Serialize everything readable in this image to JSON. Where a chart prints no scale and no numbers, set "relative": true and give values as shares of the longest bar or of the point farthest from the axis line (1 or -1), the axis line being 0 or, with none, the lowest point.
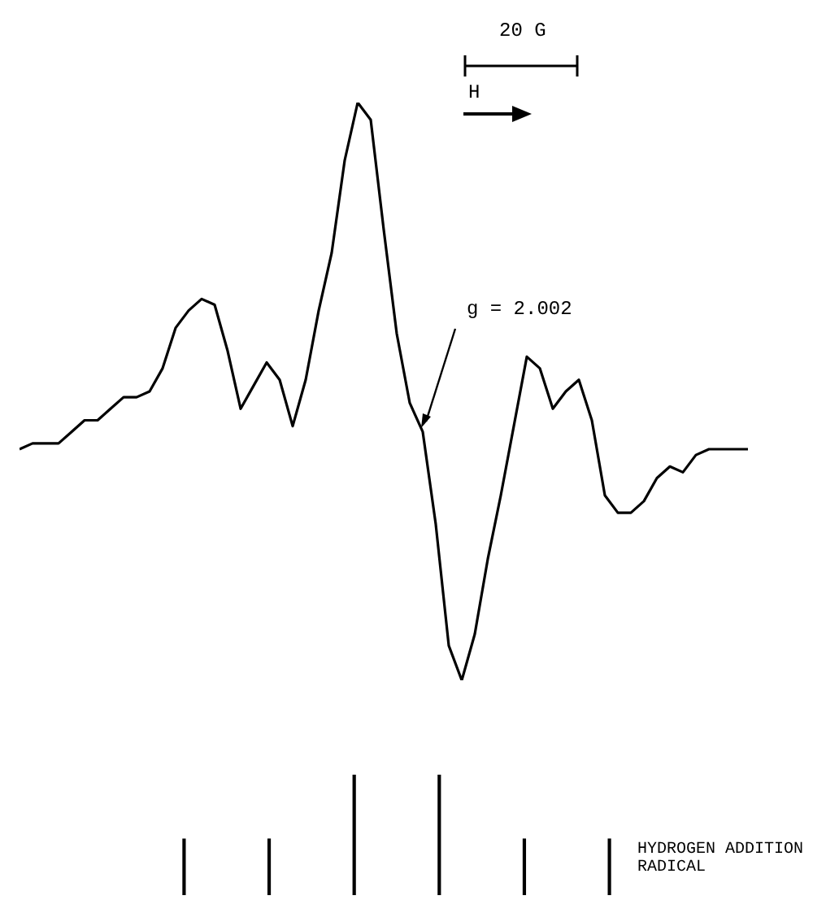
{
  "chart_data": [
    {
      "type": "line",
      "relative": true,
      "color": "#000000",
      "annotations": [
        "20 G",
        "H",
        "g = 2.002"
      ],
      "categories": [
        null,
        null,
        null,
        null,
        null,
        null,
        null,
        null,
        null,
        null,
        null,
        null,
        null,
        null,
        null,
        null,
        null,
        null,
        null,
        null,
        null,
        null,
        null,
        null,
        null,
        null,
        null,
        null,
        null,
        null,
        null,
        null,
        null,
        null,
        null,
        null,
        null,
        null,
        null,
        null,
        null,
        null,
        null,
        null,
        null,
        null,
        null,
        null,
        null,
        null,
        null,
        null,
        null,
        null,
        null,
        null,
        null
      ],
      "values": [
        0.4,
        0.41,
        0.41,
        0.41,
        0.43,
        0.45,
        0.45,
        0.47,
        0.49,
        0.49,
        0.5,
        0.54,
        0.61,
        0.64,
        0.66,
        0.65,
        0.57,
        0.47,
        0.51,
        0.55,
        0.52,
        0.44,
        0.52,
        0.64,
        0.74,
        0.9,
        1.0,
        0.97,
        0.78,
        0.6,
        0.48,
        0.43,
        0.27,
        0.06,
        0,
        0.08,
        0.21,
        0.32,
        0.44,
        0.56,
        0.54,
        0.47,
        0.5,
        0.52,
        0.45,
        0.32,
        0.29,
        0.29,
        0.31,
        0.35,
        0.37,
        0.36,
        0.39,
        0.4,
        0.4,
        0.4,
        0.4
      ]
    },
    {
      "type": "bar",
      "relative": true,
      "color": "#000000",
      "annotations": [
        "HYDROGEN ADDITION RADICAL"
      ],
      "categories": [
        null,
        null,
        null,
        null,
        null,
        null
      ],
      "values": [
        0.47,
        0.47,
        1,
        1,
        0.47,
        0.47
      ]
    }
  ]
}
